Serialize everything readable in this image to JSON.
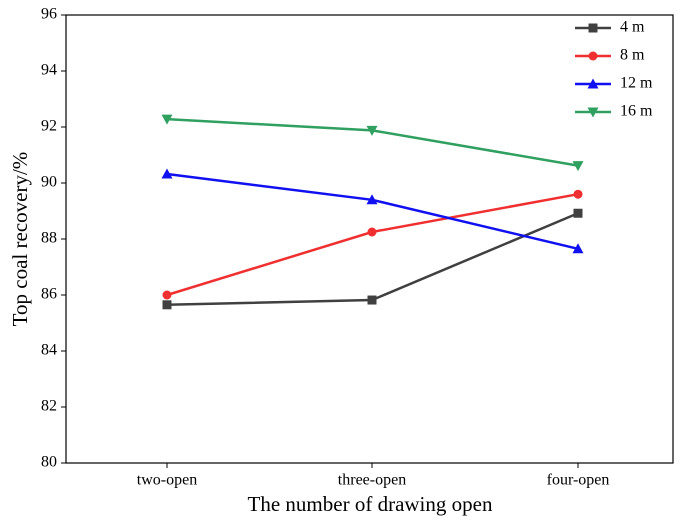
{
  "chart_data": {
    "type": "line",
    "xlabel": "The number of drawing open",
    "ylabel": "Top coal recovery/%",
    "categories": [
      "two-open",
      "three-open",
      "four-open"
    ],
    "series": [
      {
        "name": "4 m",
        "color": "#404040",
        "marker": "square",
        "values": [
          85.65,
          85.82,
          88.92
        ]
      },
      {
        "name": "8 m",
        "color": "#f03030",
        "marker": "circle",
        "values": [
          86.0,
          88.25,
          89.6
        ]
      },
      {
        "name": "12 m",
        "color": "#1010f0",
        "marker": "triangle-up",
        "values": [
          90.32,
          89.4,
          87.65
        ]
      },
      {
        "name": "16 m",
        "color": "#30a060",
        "marker": "triangle-down",
        "values": [
          92.28,
          91.88,
          90.62
        ]
      }
    ],
    "ylim": [
      80,
      96
    ],
    "yticks": [
      80,
      82,
      84,
      86,
      88,
      90,
      92,
      94,
      96
    ],
    "legend": "upper-right"
  }
}
